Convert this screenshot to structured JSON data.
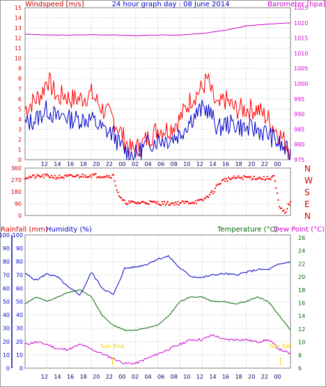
{
  "chart_data": [
    {
      "id": "wind_baro",
      "type": "line",
      "title": "24 hour graph day : 08 June 2014",
      "left_axis_label": "Windspeed [m/s]",
      "right_axis_label": "Barometer [hpa]",
      "left_ylim": [
        0,
        15
      ],
      "right_ylim": [
        975,
        1025
      ],
      "left_ticks": [
        "0",
        "1",
        "2",
        "3",
        "4",
        "5",
        "6",
        "7",
        "8",
        "9",
        "10",
        "11",
        "12",
        "13",
        "14",
        "15"
      ],
      "right_ticks": [
        "975",
        "980",
        "985",
        "990",
        "995",
        "1000",
        "1005",
        "1010",
        "1015",
        "1020",
        "1025"
      ],
      "x_ticks": [
        "12",
        "14",
        "16",
        "18",
        "20",
        "22",
        "00",
        "02",
        "04",
        "06",
        "08",
        "10",
        "12",
        "14",
        "16",
        "18",
        "20",
        "22",
        "00"
      ],
      "grid": true,
      "series": [
        {
          "name": "Windspeed",
          "role": "gust",
          "color": "#ff0000",
          "axis": "left",
          "x": [
            0,
            1,
            1.5,
            2,
            2.5,
            3,
            3.5,
            4,
            5,
            6,
            7,
            8,
            8.5,
            9,
            9.5,
            10,
            10.5,
            11,
            12,
            13,
            14,
            15,
            16,
            16.5,
            17,
            17.5,
            18,
            19,
            20,
            21,
            22,
            23,
            24
          ],
          "values": [
            5,
            6,
            6.5,
            8,
            7,
            6,
            6.5,
            6,
            6,
            6.5,
            5,
            4,
            3,
            2,
            1,
            1,
            1.5,
            2,
            3,
            3,
            4,
            6,
            7,
            8,
            6,
            5,
            6,
            5,
            5,
            5,
            4,
            2.5,
            1
          ]
        },
        {
          "name": "Windspeed",
          "role": "average",
          "color": "#0000cc",
          "axis": "left",
          "x": [
            0,
            1,
            1.5,
            2,
            2.5,
            3,
            3.5,
            4,
            5,
            6,
            7,
            8,
            8.5,
            9,
            9.5,
            10,
            10.5,
            11,
            12,
            13,
            14,
            15,
            16,
            16.5,
            17,
            17.5,
            18,
            19,
            20,
            21,
            22,
            23,
            24
          ],
          "values": [
            3.5,
            4,
            4.5,
            5,
            4.5,
            4,
            4.5,
            4,
            4,
            4,
            3,
            2.5,
            1.5,
            1,
            0.5,
            0.5,
            1,
            1.5,
            2,
            2,
            2.5,
            4,
            5,
            5,
            4,
            3,
            3.5,
            3.5,
            3,
            3,
            2.5,
            1.5,
            0.5
          ]
        },
        {
          "name": "Barometer",
          "color": "#cc00cc",
          "axis": "right",
          "x": [
            0,
            2,
            4,
            6,
            8,
            10,
            12,
            14,
            16,
            18,
            20,
            22,
            24
          ],
          "values": [
            1016.3,
            1016.0,
            1016.0,
            1016.1,
            1016.0,
            1015.8,
            1016.0,
            1016.0,
            1016.5,
            1017.5,
            1019.0,
            1019.6,
            1020.0
          ]
        }
      ]
    },
    {
      "id": "wind_dir",
      "type": "scatter",
      "left_ylim": [
        0,
        360
      ],
      "left_ticks": [
        "0",
        "90",
        "180",
        "270",
        "360"
      ],
      "right_ticks": [
        "N",
        "E",
        "S",
        "W",
        "N"
      ],
      "x_ticks": [],
      "grid": true,
      "series": [
        {
          "name": "Wind direction",
          "color": "#ff0000",
          "x": [
            0,
            1,
            2,
            3,
            4,
            5,
            6,
            7,
            8,
            8.3,
            8.6,
            9,
            10,
            11,
            12,
            13,
            14,
            15,
            16,
            17,
            17.5,
            18,
            19,
            20,
            21,
            22,
            22.5,
            23,
            23.5,
            24
          ],
          "values": [
            290,
            295,
            300,
            290,
            295,
            300,
            305,
            300,
            300,
            200,
            130,
            100,
            95,
            100,
            95,
            90,
            95,
            100,
            110,
            180,
            240,
            270,
            285,
            290,
            285,
            280,
            300,
            60,
            20,
            110
          ]
        }
      ]
    },
    {
      "id": "temp_hum",
      "type": "line",
      "left_axis_label": "Rainfall (mm)",
      "left_axis_label2": "Humidity (%)",
      "right_axis_label": "Temperature (°C)",
      "right_axis_label2": "Dew Point (°C)",
      "rain_ylim": [
        0,
        100
      ],
      "humidity_ylim": [
        0,
        100
      ],
      "temp_ylim": [
        6,
        34
      ],
      "rain_ticks": [
        "0",
        "10",
        "20",
        "30",
        "40",
        "50",
        "60",
        "70",
        "80",
        "90",
        "100"
      ],
      "humidity_ticks": [
        "0",
        "10",
        "20",
        "30",
        "40",
        "50",
        "60",
        "70",
        "80",
        "90",
        "100"
      ],
      "temp_ticks": [
        "6",
        "8",
        "10",
        "12",
        "14",
        "16",
        "18",
        "20",
        "22",
        "24",
        "26"
      ],
      "x_ticks": [
        "12",
        "14",
        "16",
        "18",
        "20",
        "22",
        "00",
        "02",
        "04",
        "06",
        "08",
        "10",
        "12",
        "14",
        "16",
        "18",
        "20",
        "22",
        "00"
      ],
      "grid": true,
      "annotations": [
        {
          "label": "Sun Rise",
          "x": 15.8,
          "color": "#ffcc00"
        },
        {
          "label": "Sun Set",
          "x": 46.2,
          "color": "#ffcc00"
        }
      ],
      "series": [
        {
          "name": "Humidity",
          "color": "#0000cc",
          "axis": "humidity",
          "x": [
            0,
            1,
            2,
            3,
            4,
            5,
            6,
            7,
            8,
            9,
            10,
            11,
            12,
            13,
            14,
            15,
            16,
            17,
            18,
            19,
            20,
            21,
            22,
            23,
            24
          ],
          "values": [
            71,
            66,
            71,
            68,
            60,
            55,
            72,
            60,
            55,
            75,
            76,
            78,
            82,
            84,
            75,
            69,
            68,
            70,
            71,
            70,
            72,
            74,
            74,
            78,
            80
          ]
        },
        {
          "name": "Temperature",
          "color": "#006600",
          "axis": "temp",
          "x": [
            0,
            1,
            2,
            3,
            4,
            5,
            6,
            7,
            8,
            9,
            10,
            11,
            12,
            13,
            14,
            15,
            16,
            17,
            18,
            19,
            20,
            21,
            22,
            23,
            24
          ],
          "values": [
            19.5,
            21,
            20,
            21,
            22,
            22.5,
            21,
            17,
            15,
            14,
            14,
            14.5,
            15,
            17,
            20,
            21,
            21,
            20,
            20,
            19.5,
            20,
            21,
            20,
            17,
            14
          ]
        },
        {
          "name": "Dew Point",
          "color": "#cc00cc",
          "axis": "temp",
          "x": [
            0,
            1,
            2,
            3,
            4,
            5,
            6,
            7,
            8,
            9,
            10,
            11,
            12,
            13,
            14,
            15,
            16,
            17,
            18,
            19,
            20,
            21,
            22,
            23,
            24
          ],
          "values": [
            11,
            11.5,
            11,
            10,
            10,
            11,
            10,
            9,
            8,
            7,
            7,
            8,
            9,
            10,
            11,
            12,
            12,
            13,
            12,
            12,
            12,
            11.5,
            12,
            10,
            9
          ]
        }
      ]
    }
  ]
}
